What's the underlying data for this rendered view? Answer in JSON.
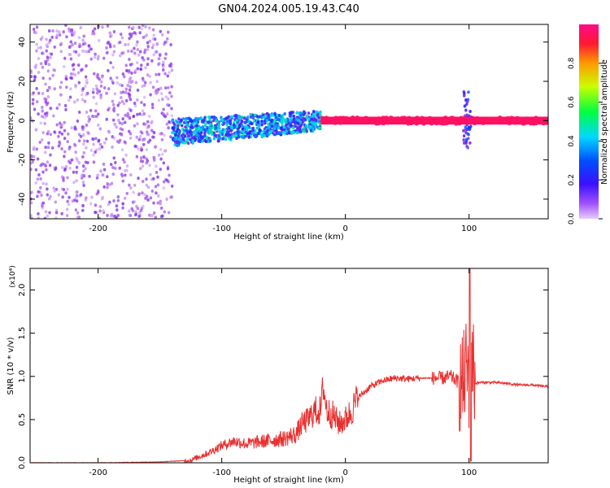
{
  "title": "GN04.2024.005.19.43.C40",
  "chart_data": [
    {
      "type": "heatmap",
      "xlabel": "Height of straight line (km)",
      "ylabel": "Frequency (Hz)",
      "xlim": [
        -255,
        164
      ],
      "ylim": [
        -50,
        49
      ],
      "x_ticks": [
        -200,
        -100,
        0,
        100
      ],
      "y_ticks": [
        -40,
        -20,
        0,
        20,
        40
      ],
      "colorbar": {
        "label": "Normalized spectral amplitude",
        "range": [
          0,
          1
        ],
        "ticks": [
          0.0,
          0.2,
          0.4,
          0.6,
          0.8
        ],
        "colormap": "rainbow",
        "stops": [
          "#e6ccff",
          "#8a2be2",
          "#2222ff",
          "#00d0ff",
          "#00ff44",
          "#c8ff00",
          "#ff9a00",
          "#ff1a40",
          "#ff0a7a"
        ]
      },
      "regions": [
        {
          "x_range": [
            -255,
            -140
          ],
          "freq_range": [
            -50,
            49
          ],
          "amplitude": [
            0.02,
            0.15
          ],
          "pattern": "scattered noise"
        },
        {
          "x_range": [
            -140,
            -20
          ],
          "freq_range": [
            -12,
            8
          ],
          "amplitude": [
            0.15,
            0.45
          ],
          "pattern": "band rising toward 0 Hz"
        },
        {
          "x_range": [
            -20,
            164
          ],
          "freq_range": [
            -2,
            2
          ],
          "amplitude": [
            0.85,
            1.0
          ],
          "pattern": "narrow line at 0 Hz"
        },
        {
          "x_range": [
            95,
            102
          ],
          "freq_range": [
            -14,
            16
          ],
          "amplitude": [
            0.1,
            0.3
          ],
          "pattern": "vertical spike"
        }
      ],
      "grid": false
    },
    {
      "type": "line",
      "xlabel": "Height of straight line (km)",
      "ylabel": "SNR (10 * v/v)",
      "y_multiplier": "(x10⁴)",
      "xlim": [
        -255,
        164
      ],
      "ylim": [
        0,
        2.25
      ],
      "x_ticks": [
        -200,
        -100,
        0,
        100
      ],
      "y_ticks": [
        0.0,
        0.5,
        1.0,
        1.5,
        2.0
      ],
      "color": "#e83030",
      "series": [
        {
          "x": [
            -255,
            -200,
            -150,
            -125,
            -110,
            -100,
            -90,
            -80,
            -70,
            -60,
            -50,
            -40,
            -35,
            -30,
            -25,
            -20,
            -18,
            -15,
            -10,
            -5,
            0,
            5,
            10,
            20,
            30,
            40,
            50,
            60,
            70,
            80,
            85,
            90,
            95,
            98,
            100,
            102,
            105,
            110,
            120,
            130,
            140,
            150,
            164
          ],
          "values": [
            0.0,
            0.0,
            0.01,
            0.03,
            0.12,
            0.2,
            0.25,
            0.22,
            0.24,
            0.26,
            0.28,
            0.33,
            0.45,
            0.5,
            0.6,
            0.6,
            0.9,
            0.6,
            0.55,
            0.45,
            0.5,
            0.6,
            0.75,
            0.88,
            0.95,
            0.98,
            0.97,
            0.98,
            0.98,
            0.98,
            1.0,
            0.95,
            0.9,
            1.1,
            0.95,
            1.3,
            0.92,
            0.93,
            0.93,
            0.92,
            0.9,
            0.9,
            0.88
          ]
        }
      ],
      "grid": false
    }
  ]
}
